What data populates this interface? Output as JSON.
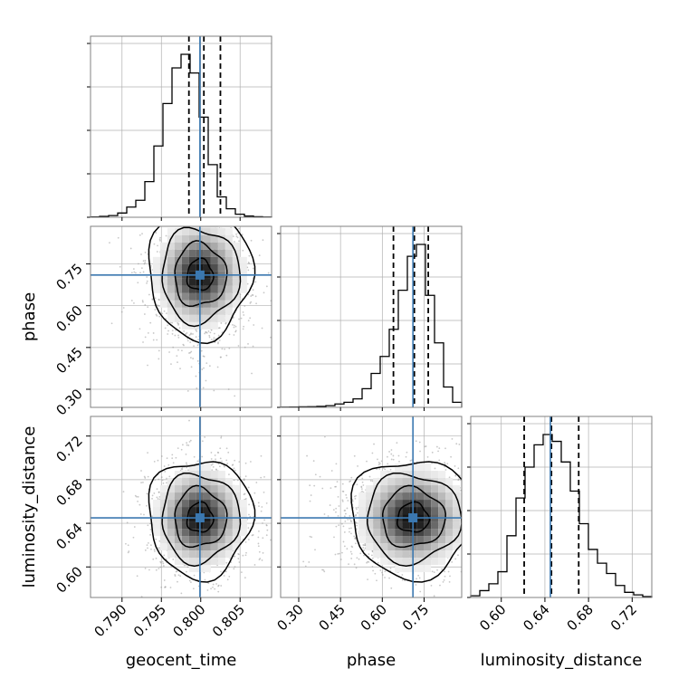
{
  "colors": {
    "truth": "#3b78b0",
    "hist": "#000000",
    "grid": "#b0b0b0",
    "frame": "#808080"
  },
  "chart_data": {
    "type": "corner",
    "parameters": [
      "geocent_time",
      "phase",
      "luminosity_distance"
    ],
    "truths": {
      "geocent_time": 0.7999,
      "phase": 0.71,
      "luminosity_distance": 0.645
    },
    "quantile_lines": {
      "geocent_time": [
        0.7985,
        0.8004,
        0.8025
      ],
      "phase": [
        0.64,
        0.715,
        0.765
      ],
      "luminosity_distance": [
        0.621,
        0.646,
        0.671
      ]
    },
    "ranges": {
      "geocent_time": [
        0.786,
        0.809
      ],
      "phase": [
        0.235,
        0.885
      ],
      "luminosity_distance": [
        0.572,
        0.738
      ]
    },
    "ticks": {
      "geocent_time": [
        "0.790",
        "0.795",
        "0.800",
        "0.805"
      ],
      "phase": [
        "0.30",
        "0.45",
        "0.60",
        "0.75"
      ],
      "luminosity_distance": [
        "0.60",
        "0.64",
        "0.68",
        "0.72"
      ]
    },
    "histograms": {
      "geocent_time": {
        "edges_start": 0.786,
        "bin_width": 0.00115,
        "counts": [
          0.2,
          0.5,
          1.0,
          2.5,
          6,
          10,
          21,
          42,
          67,
          88,
          96,
          85,
          59,
          31,
          12,
          5,
          1.8,
          0.7,
          0.3,
          0.1
        ]
      },
      "phase": {
        "edges_start": 0.235,
        "bin_width": 0.0325,
        "counts": [
          0.1,
          0.2,
          0.3,
          0.4,
          0.6,
          1,
          2,
          3,
          5,
          11,
          20,
          30,
          46,
          69,
          89,
          96,
          66,
          38,
          12,
          3
        ]
      },
      "luminosity_distance": {
        "edges_start": 0.572,
        "bin_width": 0.0083,
        "counts": [
          1,
          4,
          8,
          15,
          36,
          58,
          76,
          89,
          95,
          91,
          79,
          62,
          43,
          28,
          20,
          14,
          7,
          3,
          1.5,
          0.5
        ]
      }
    },
    "grid": true
  }
}
